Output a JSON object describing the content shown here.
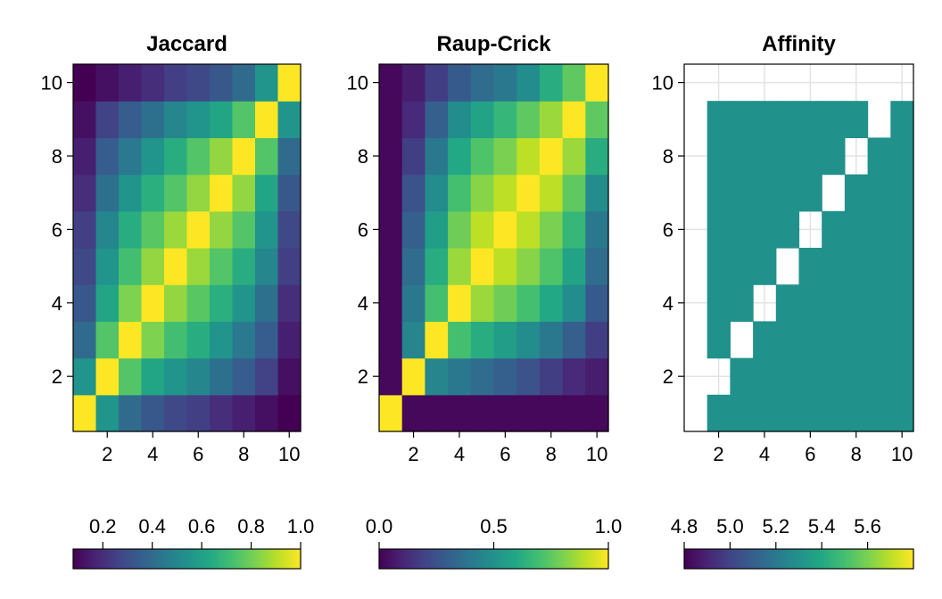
{
  "chart_data": [
    {
      "type": "heatmap",
      "title": "Jaccard",
      "x": [
        1,
        2,
        3,
        4,
        5,
        6,
        7,
        8,
        9,
        10
      ],
      "y": [
        1,
        2,
        3,
        4,
        5,
        6,
        7,
        8,
        9,
        10
      ],
      "xticks": [
        "2",
        "4",
        "6",
        "8",
        "10"
      ],
      "yticks": [
        "2",
        "4",
        "6",
        "8",
        "10"
      ],
      "grid": false,
      "colormap": "viridis",
      "clim": [
        0.08,
        1.0
      ],
      "colorbar_ticks": [
        "0.2",
        "0.4",
        "0.6",
        "0.8",
        "1.0"
      ],
      "colorbar_tick_values": [
        0.2,
        0.4,
        0.6,
        0.8,
        1.0
      ],
      "z": [
        [
          1.0,
          0.55,
          0.4,
          0.33,
          0.28,
          0.25,
          0.2,
          0.16,
          0.12,
          0.08
        ],
        [
          0.55,
          1.0,
          0.75,
          0.62,
          0.55,
          0.5,
          0.42,
          0.35,
          0.26,
          0.12
        ],
        [
          0.4,
          0.75,
          1.0,
          0.82,
          0.72,
          0.65,
          0.55,
          0.45,
          0.35,
          0.16
        ],
        [
          0.33,
          0.62,
          0.82,
          1.0,
          0.85,
          0.76,
          0.66,
          0.55,
          0.42,
          0.2
        ],
        [
          0.28,
          0.55,
          0.72,
          0.85,
          1.0,
          0.86,
          0.75,
          0.65,
          0.5,
          0.25
        ],
        [
          0.25,
          0.5,
          0.65,
          0.76,
          0.86,
          1.0,
          0.85,
          0.75,
          0.55,
          0.28
        ],
        [
          0.2,
          0.42,
          0.55,
          0.66,
          0.75,
          0.85,
          1.0,
          0.85,
          0.62,
          0.33
        ],
        [
          0.16,
          0.35,
          0.45,
          0.55,
          0.65,
          0.75,
          0.85,
          1.0,
          0.75,
          0.4
        ],
        [
          0.12,
          0.26,
          0.35,
          0.42,
          0.5,
          0.55,
          0.62,
          0.75,
          1.0,
          0.55
        ],
        [
          0.08,
          0.12,
          0.16,
          0.2,
          0.25,
          0.28,
          0.33,
          0.4,
          0.55,
          1.0
        ]
      ]
    },
    {
      "type": "heatmap",
      "title": "Raup-Crick",
      "x": [
        1,
        2,
        3,
        4,
        5,
        6,
        7,
        8,
        9,
        10
      ],
      "y": [
        1,
        2,
        3,
        4,
        5,
        6,
        7,
        8,
        9,
        10
      ],
      "xticks": [
        "2",
        "4",
        "6",
        "8",
        "10"
      ],
      "yticks": [
        "2",
        "4",
        "6",
        "8",
        "10"
      ],
      "grid": false,
      "colormap": "viridis",
      "clim": [
        0.0,
        1.0
      ],
      "colorbar_ticks": [
        "0.0",
        "0.5",
        "1.0"
      ],
      "colorbar_tick_values": [
        0.0,
        0.5,
        1.0
      ],
      "z": [
        [
          1.0,
          0.02,
          0.02,
          0.02,
          0.02,
          0.02,
          0.02,
          0.02,
          0.02,
          0.02
        ],
        [
          0.02,
          1.0,
          0.45,
          0.4,
          0.35,
          0.3,
          0.25,
          0.18,
          0.12,
          0.08
        ],
        [
          0.02,
          0.45,
          1.0,
          0.7,
          0.62,
          0.55,
          0.48,
          0.4,
          0.3,
          0.18
        ],
        [
          0.02,
          0.4,
          0.7,
          1.0,
          0.85,
          0.78,
          0.7,
          0.6,
          0.48,
          0.28
        ],
        [
          0.02,
          0.35,
          0.62,
          0.85,
          1.0,
          0.9,
          0.82,
          0.72,
          0.58,
          0.35
        ],
        [
          0.02,
          0.3,
          0.55,
          0.78,
          0.9,
          1.0,
          0.9,
          0.8,
          0.66,
          0.4
        ],
        [
          0.02,
          0.25,
          0.48,
          0.7,
          0.82,
          0.9,
          1.0,
          0.9,
          0.75,
          0.48
        ],
        [
          0.02,
          0.18,
          0.4,
          0.6,
          0.72,
          0.8,
          0.9,
          1.0,
          0.85,
          0.62
        ],
        [
          0.02,
          0.12,
          0.3,
          0.48,
          0.58,
          0.66,
          0.75,
          0.85,
          1.0,
          0.75
        ],
        [
          0.02,
          0.08,
          0.18,
          0.28,
          0.35,
          0.4,
          0.48,
          0.62,
          0.75,
          1.0
        ]
      ]
    },
    {
      "type": "heatmap",
      "title": "Affinity",
      "x": [
        1,
        2,
        3,
        4,
        5,
        6,
        7,
        8,
        9,
        10
      ],
      "y": [
        1,
        2,
        3,
        4,
        5,
        6,
        7,
        8,
        9,
        10
      ],
      "xticks": [
        "2",
        "4",
        "6",
        "8",
        "10"
      ],
      "yticks": [
        "2",
        "4",
        "6",
        "8",
        "10"
      ],
      "grid": true,
      "colormap": "viridis",
      "clim": [
        4.8,
        5.8
      ],
      "colorbar_ticks": [
        "4.8",
        "5.0",
        "5.2",
        "5.4",
        "5.6"
      ],
      "colorbar_tick_values": [
        4.8,
        5.0,
        5.2,
        5.4,
        5.6
      ],
      "note_values": "null = empty cell",
      "z": [
        [
          null,
          null,
          null,
          null,
          null,
          null,
          null,
          null,
          null,
          null
        ],
        [
          5.3,
          null,
          5.3,
          5.3,
          5.3,
          5.3,
          5.3,
          5.3,
          5.3,
          null
        ],
        [
          5.3,
          5.3,
          null,
          5.3,
          5.3,
          5.3,
          5.3,
          5.3,
          5.3,
          null
        ],
        [
          5.3,
          5.3,
          5.3,
          null,
          5.3,
          5.3,
          5.3,
          5.3,
          5.3,
          null
        ],
        [
          5.3,
          5.3,
          5.3,
          5.3,
          null,
          5.3,
          5.3,
          5.3,
          5.3,
          null
        ],
        [
          5.3,
          5.3,
          5.3,
          5.3,
          5.3,
          null,
          5.3,
          5.3,
          5.3,
          null
        ],
        [
          5.3,
          5.3,
          5.3,
          5.3,
          5.3,
          5.3,
          null,
          5.3,
          5.3,
          null
        ],
        [
          5.3,
          5.3,
          5.3,
          5.3,
          5.3,
          5.3,
          5.3,
          null,
          5.3,
          null
        ],
        [
          5.3,
          5.3,
          5.3,
          5.3,
          5.3,
          5.3,
          5.3,
          5.3,
          null,
          null
        ],
        [
          5.3,
          5.3,
          5.3,
          5.3,
          5.3,
          5.3,
          5.3,
          5.3,
          5.3,
          null
        ]
      ]
    }
  ]
}
